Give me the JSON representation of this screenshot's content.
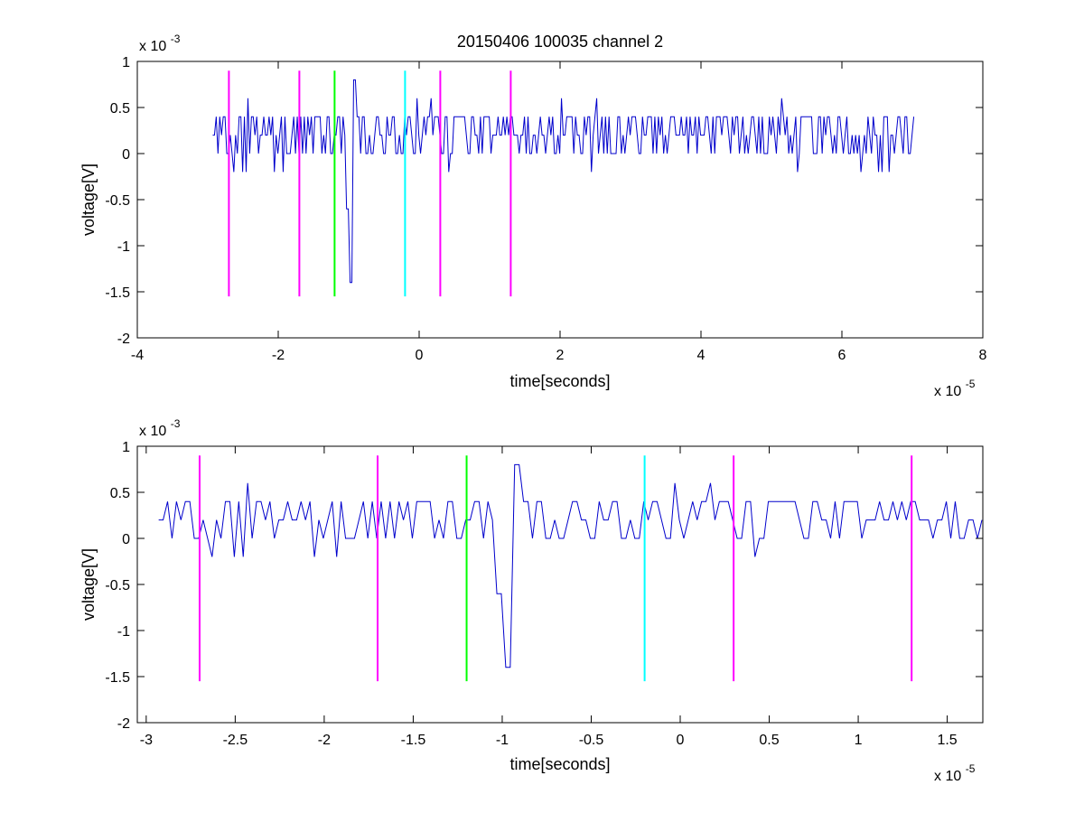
{
  "chart_data": [
    {
      "type": "line",
      "title": "20150406 100035 channel 2",
      "xlabel": "time[seconds]",
      "ylabel": "voltage[V]",
      "x_scale_label": "x 10",
      "x_scale_exp": "-5",
      "y_scale_label": "x 10",
      "y_scale_exp": "-3",
      "xlim": [
        -4,
        8
      ],
      "ylim": [
        -2,
        1
      ],
      "x_ticks": [
        -4,
        -2,
        0,
        2,
        4,
        6,
        8
      ],
      "x_tick_labels": [
        "-4",
        "-2",
        "0",
        "2",
        "4",
        "6",
        "8"
      ],
      "y_ticks": [
        -2,
        -1.5,
        -1,
        -0.5,
        0,
        0.5,
        1
      ],
      "y_tick_labels": [
        "-2",
        "-1.5",
        "-1",
        "-0.5",
        "0",
        "0.5",
        "1"
      ],
      "grid": false,
      "signal": {
        "color": "#0000cc",
        "x_range": [
          -2.93,
          7.03
        ],
        "baseline": 0.2,
        "noise_levels": [
          -0.2,
          0,
          0.2,
          0.4,
          0.6
        ],
        "spike_x": -0.97,
        "spike_min": -1.4,
        "spike_max": 0.8
      },
      "markers": [
        {
          "x": -2.7,
          "color": "#ff00ff",
          "y_range": [
            -1.55,
            0.9
          ]
        },
        {
          "x": -1.7,
          "color": "#ff00ff",
          "y_range": [
            -1.55,
            0.9
          ]
        },
        {
          "x": -1.2,
          "color": "#00ff00",
          "y_range": [
            -1.55,
            0.9
          ]
        },
        {
          "x": -0.2,
          "color": "#00ffff",
          "y_range": [
            -1.55,
            0.9
          ]
        },
        {
          "x": 0.3,
          "color": "#ff00ff",
          "y_range": [
            -1.55,
            0.9
          ]
        },
        {
          "x": 1.3,
          "color": "#ff00ff",
          "y_range": [
            -1.55,
            0.9
          ]
        }
      ]
    },
    {
      "type": "line",
      "title": "",
      "xlabel": "time[seconds]",
      "ylabel": "voltage[V]",
      "x_scale_label": "x 10",
      "x_scale_exp": "-5",
      "y_scale_label": "x 10",
      "y_scale_exp": "-3",
      "xlim": [
        -3.05,
        1.7
      ],
      "ylim": [
        -2,
        1
      ],
      "x_ticks": [
        -3,
        -2.5,
        -2,
        -1.5,
        -1,
        -0.5,
        0,
        0.5,
        1,
        1.5
      ],
      "x_tick_labels": [
        "-3",
        "-2.5",
        "-2",
        "-1.5",
        "-1",
        "-0.5",
        "0",
        "0.5",
        "1",
        "1.5"
      ],
      "y_ticks": [
        -2,
        -1.5,
        -1,
        -0.5,
        0,
        0.5,
        1
      ],
      "y_tick_labels": [
        "-2",
        "-1.5",
        "-1",
        "-0.5",
        "0",
        "0.5",
        "1"
      ],
      "grid": false,
      "signal": {
        "color": "#0000cc",
        "x_range": [
          -2.93,
          1.7
        ],
        "baseline": 0.2,
        "noise_levels": [
          -0.2,
          0,
          0.2,
          0.4,
          0.6
        ],
        "spike_x": -0.97,
        "spike_min": -1.4,
        "spike_max": 0.8
      },
      "markers": [
        {
          "x": -2.7,
          "color": "#ff00ff",
          "y_range": [
            -1.55,
            0.9
          ]
        },
        {
          "x": -1.7,
          "color": "#ff00ff",
          "y_range": [
            -1.55,
            0.9
          ]
        },
        {
          "x": -1.2,
          "color": "#00ff00",
          "y_range": [
            -1.55,
            0.9
          ]
        },
        {
          "x": -0.2,
          "color": "#00ffff",
          "y_range": [
            -1.55,
            0.9
          ]
        },
        {
          "x": 0.3,
          "color": "#ff00ff",
          "y_range": [
            -1.55,
            0.9
          ]
        },
        {
          "x": 1.3,
          "color": "#ff00ff",
          "y_range": [
            -1.55,
            0.9
          ]
        }
      ]
    }
  ]
}
